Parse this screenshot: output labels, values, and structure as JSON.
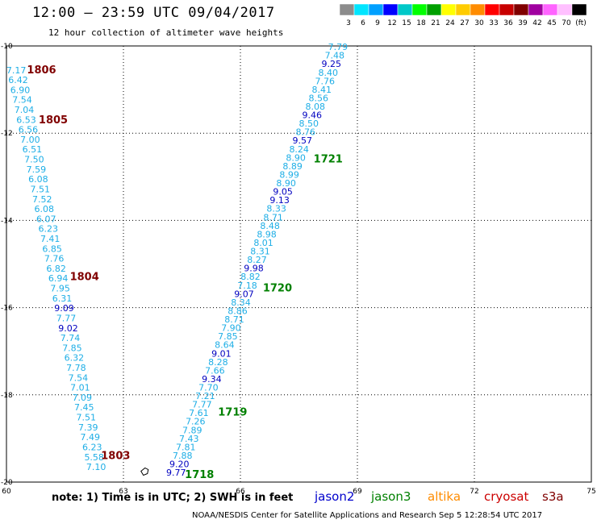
{
  "header": {
    "title": "12:00 — 23:59 UTC 09/04/2017",
    "subtitle": "12 hour collection of altimeter wave heights"
  },
  "colorbar": {
    "colors": [
      "#8c8c8c",
      "#00e5ff",
      "#00a0ff",
      "#0000ff",
      "#00c8c8",
      "#00ff00",
      "#00a000",
      "#ffff00",
      "#ffcc00",
      "#ff8c00",
      "#ff0000",
      "#c80000",
      "#800000",
      "#a000a0",
      "#ff64ff",
      "#ffc0ff",
      "#000000"
    ],
    "labels": [
      "3",
      "6",
      "9",
      "12",
      "15",
      "18",
      "21",
      "24",
      "27",
      "30",
      "33",
      "36",
      "39",
      "42",
      "45",
      "70",
      "(ft)"
    ]
  },
  "legend": [
    {
      "name": "jason2",
      "color": "#0000cc"
    },
    {
      "name": "jason3",
      "color": "#008000"
    },
    {
      "name": "altika",
      "color": "#ff8c00"
    },
    {
      "name": "cryosat",
      "color": "#cc0000"
    },
    {
      "name": "s3a",
      "color": "#800000"
    }
  ],
  "footer": {
    "note": "note:  1) Time is in UTC;  2) SWH is in feet",
    "credit": "NOAA/NESDIS Center for Satellite Applications and Research    Sep  5 12:28:54 UTC 2017"
  },
  "chart_data": {
    "type": "scatter",
    "xlim": [
      60,
      75
    ],
    "ylim": [
      -20,
      -10
    ],
    "xticks": [
      "60",
      "63",
      "66",
      "69",
      "72",
      "75"
    ],
    "yticks": [
      "-10",
      "-12",
      "-14",
      "-16",
      "-18",
      "-20"
    ],
    "grid": true,
    "tracks": [
      {
        "satellite": "s3a",
        "color": "#800000",
        "times": [
          {
            "label": "1806",
            "x": 60.9,
            "y": -10.55
          },
          {
            "label": "1805",
            "x": 61.2,
            "y": -11.7
          },
          {
            "label": "1804",
            "x": 62.0,
            "y": -15.3
          },
          {
            "label": "1803",
            "x": 62.8,
            "y": -19.4
          }
        ],
        "x_start": 60.25,
        "y_start": -10.55,
        "x_end": 62.3,
        "y_end": -19.65,
        "values": [
          "7.17",
          "6.42",
          "6.90",
          "7.54",
          "7.04",
          "6.53",
          "6.56",
          "7.00",
          "6.51",
          "7.50",
          "7.59",
          "6.08",
          "7.51",
          "7.52",
          "6.08",
          "6.07",
          "6.23",
          "7.41",
          "6.85",
          "7.76",
          "6.82",
          "6.94",
          "7.95",
          "6.31",
          "9.09",
          "7.77",
          "9.02",
          "7.74",
          "7.85",
          "6.32",
          "7.78",
          "7.54",
          "7.01",
          "7.09",
          "7.45",
          "7.51",
          "7.39",
          "7.49",
          "6.23",
          "5.58",
          "7.10"
        ]
      },
      {
        "satellite": "jason3",
        "color": "#008000",
        "times": [
          {
            "label": "1721",
            "x": 68.25,
            "y": -12.6
          },
          {
            "label": "1720",
            "x": 66.95,
            "y": -15.55
          },
          {
            "label": "1719",
            "x": 65.8,
            "y": -18.4
          },
          {
            "label": "1718",
            "x": 64.95,
            "y": -19.83
          }
        ],
        "x_start": 68.5,
        "y_start": -10.02,
        "x_end": 64.35,
        "y_end": -19.78,
        "values": [
          "7.79",
          "7.48",
          "9.25",
          "8.40",
          "7.76",
          "8.41",
          "8.56",
          "8.08",
          "9.46",
          "8.50",
          "8.76",
          "9.57",
          "8.24",
          "8.90",
          "8.89",
          "8.99",
          "8.90",
          "9.05",
          "9.13",
          "8.33",
          "8.71",
          "8.48",
          "8.98",
          "8.01",
          "8.31",
          "8.27",
          "9.98",
          "8.82",
          "7.18",
          "9.07",
          "8.34",
          "8.86",
          "8.71",
          "7.90",
          "7.85",
          "8.64",
          "9.01",
          "8.28",
          "7.66",
          "9.34",
          "7.70",
          "7.21",
          "7.77",
          "7.61",
          "7.26",
          "7.89",
          "7.43",
          "7.81",
          "7.88",
          "9.20",
          "9.77"
        ]
      }
    ]
  }
}
